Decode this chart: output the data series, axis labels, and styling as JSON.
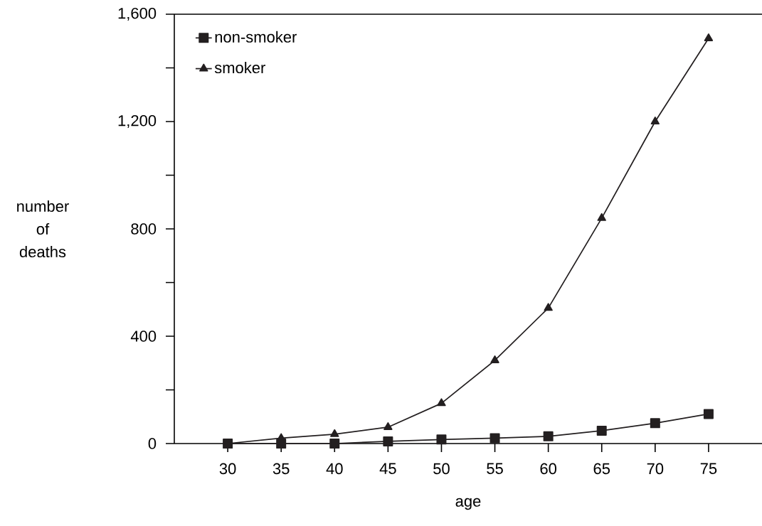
{
  "chart_data": {
    "type": "line",
    "xlabel": "age",
    "ylabel": "number of deaths",
    "x": [
      30,
      35,
      40,
      45,
      50,
      55,
      60,
      65,
      70,
      75
    ],
    "series": [
      {
        "name": "non-smoker",
        "color": "#231f20",
        "marker": "square",
        "values": [
          0,
          0,
          0,
          8,
          15,
          20,
          27,
          48,
          76,
          110
        ]
      },
      {
        "name": "smoker",
        "color": "#231f20",
        "marker": "triangle",
        "values": [
          0,
          20,
          35,
          61,
          150,
          310,
          505,
          840,
          1200,
          1510
        ]
      }
    ],
    "xlim": [
      25,
      80
    ],
    "xticks": [
      30,
      35,
      40,
      45,
      50,
      55,
      60,
      65,
      70,
      75
    ],
    "ylim": [
      0,
      1600
    ],
    "yticks": [
      0,
      {
        "value": 200,
        "label": null
      },
      400,
      {
        "value": 600,
        "label": null
      },
      800,
      {
        "value": 1000,
        "label": null
      },
      {
        "value": 1200,
        "label": "1,200"
      },
      {
        "value": 1400,
        "label": null
      },
      {
        "value": 1600,
        "label": "1,600"
      }
    ],
    "legend": "top left",
    "grid": false,
    "line_style": "solid"
  }
}
